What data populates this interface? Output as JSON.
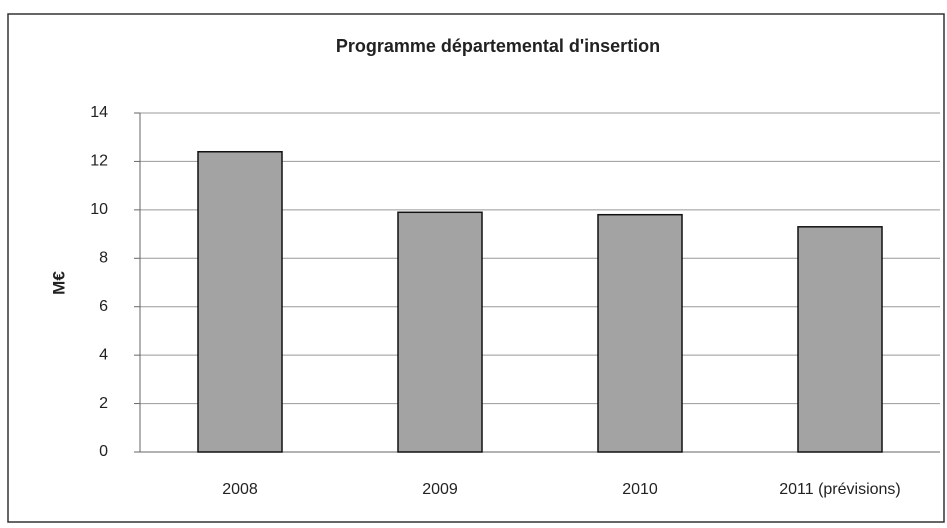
{
  "chart_data": {
    "type": "bar",
    "title": "Programme départemental d'insertion",
    "y_label": "M€",
    "categories": [
      "2008",
      "2009",
      "2010",
      "2011 (prévisions)"
    ],
    "values": [
      12.4,
      9.9,
      9.8,
      9.3
    ],
    "color": "#a3a3a3",
    "ylim": [
      0,
      14
    ],
    "yticks": [
      0,
      2,
      4,
      6,
      8,
      10,
      12,
      14
    ],
    "grid": true
  }
}
